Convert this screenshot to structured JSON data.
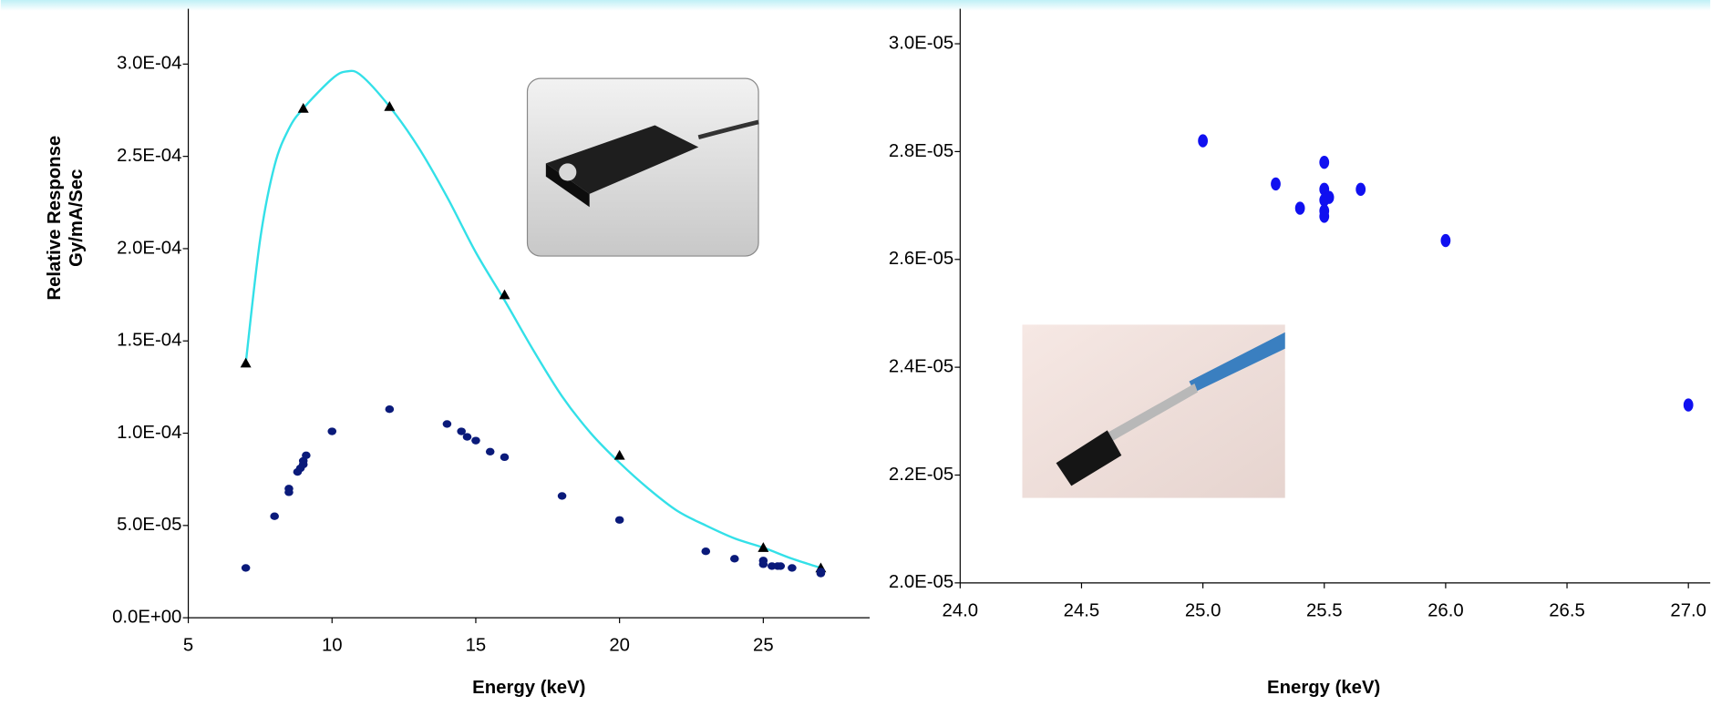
{
  "chart_data": [
    {
      "type": "scatter",
      "ylabel": [
        "Relative Response",
        "Gy/mA/Sec"
      ],
      "xlabel": "Energy (keV)",
      "xlim": [
        5,
        28.7
      ],
      "xticks": [
        5,
        10,
        15,
        20,
        25
      ],
      "ylim": [
        0,
        0.00033
      ],
      "yticks": [
        {
          "value": 0,
          "label": "0.0E+00"
        },
        {
          "value": 5e-05,
          "label": "5.0E-05"
        },
        {
          "value": 0.0001,
          "label": "1.0E-04"
        },
        {
          "value": 0.00015,
          "label": "1.5E-04"
        },
        {
          "value": 0.0002,
          "label": "2.0E-04"
        },
        {
          "value": 0.00025,
          "label": "2.5E-04"
        },
        {
          "value": 0.0003,
          "label": "3.0E-04"
        }
      ],
      "series": [
        {
          "style": "line",
          "color": "#33e0e8",
          "x": [
            7,
            7.5,
            8,
            8.5,
            9,
            10,
            10.5,
            11,
            12,
            13,
            14,
            15,
            16,
            17,
            18,
            19,
            20,
            21,
            22,
            23,
            24,
            25,
            26,
            27
          ],
          "values": [
            0.000138,
            0.000205,
            0.000245,
            0.000265,
            0.000276,
            0.000292,
            0.000296,
            0.000294,
            0.000277,
            0.000255,
            0.000228,
            0.000198,
            0.000172,
            0.000145,
            0.00012,
            0.0001,
            8.4e-05,
            7e-05,
            5.8e-05,
            5e-05,
            4.3e-05,
            3.8e-05,
            3.2e-05,
            2.7e-05
          ]
        },
        {
          "style": "triangle",
          "color": "#000000",
          "x": [
            7,
            9,
            12,
            16,
            20,
            25,
            27
          ],
          "values": [
            0.000138,
            0.000276,
            0.000277,
            0.000175,
            8.8e-05,
            3.8e-05,
            2.7e-05
          ]
        },
        {
          "style": "dot",
          "color": "#0a1a7a",
          "x": [
            7,
            8,
            8.5,
            8.5,
            8.8,
            8.9,
            9,
            9,
            9.1,
            10,
            12,
            14,
            14.5,
            14.7,
            15,
            15.5,
            16,
            18,
            20,
            23,
            24,
            25,
            25,
            25.3,
            25.5,
            25.6,
            26,
            27,
            27
          ],
          "values": [
            2.7e-05,
            5.5e-05,
            6.8e-05,
            7e-05,
            7.9e-05,
            8.1e-05,
            8.3e-05,
            8.5e-05,
            8.8e-05,
            0.000101,
            0.000113,
            0.000105,
            0.000101,
            9.8e-05,
            9.6e-05,
            9e-05,
            8.7e-05,
            6.6e-05,
            5.3e-05,
            3.6e-05,
            3.2e-05,
            3.1e-05,
            2.9e-05,
            2.8e-05,
            2.8e-05,
            2.8e-05,
            2.7e-05,
            2.4e-05,
            2.5e-05
          ]
        }
      ]
    },
    {
      "type": "scatter",
      "xlabel": "Energy (keV)",
      "xlim": [
        24,
        27.09
      ],
      "xticks": [
        {
          "value": 24,
          "label": "24.0"
        },
        {
          "value": 24.5,
          "label": "24.5"
        },
        {
          "value": 25,
          "label": "25.0"
        },
        {
          "value": 25.5,
          "label": "25.5"
        },
        {
          "value": 26,
          "label": "26.0"
        },
        {
          "value": 26.5,
          "label": "26.5"
        },
        {
          "value": 27,
          "label": "27.0"
        }
      ],
      "ylim": [
        2e-05,
        3.065e-05
      ],
      "yticks": [
        {
          "value": 2e-05,
          "label": "2.0E-05"
        },
        {
          "value": 2.2e-05,
          "label": "2.2E-05"
        },
        {
          "value": 2.4e-05,
          "label": "2.4E-05"
        },
        {
          "value": 2.6e-05,
          "label": "2.6E-05"
        },
        {
          "value": 2.8e-05,
          "label": "2.8E-05"
        },
        {
          "value": 3e-05,
          "label": "3.0E-05"
        }
      ],
      "series": [
        {
          "style": "ellipse",
          "color": "#1010f0",
          "x": [
            25.0,
            25.3,
            25.4,
            25.5,
            25.5,
            25.5,
            25.5,
            25.5,
            25.52,
            25.65,
            26.0,
            27.0
          ],
          "values": [
            2.82e-05,
            2.74e-05,
            2.695e-05,
            2.78e-05,
            2.73e-05,
            2.71e-05,
            2.69e-05,
            2.68e-05,
            2.715e-05,
            2.73e-05,
            2.635e-05,
            2.33e-05
          ]
        }
      ]
    }
  ]
}
